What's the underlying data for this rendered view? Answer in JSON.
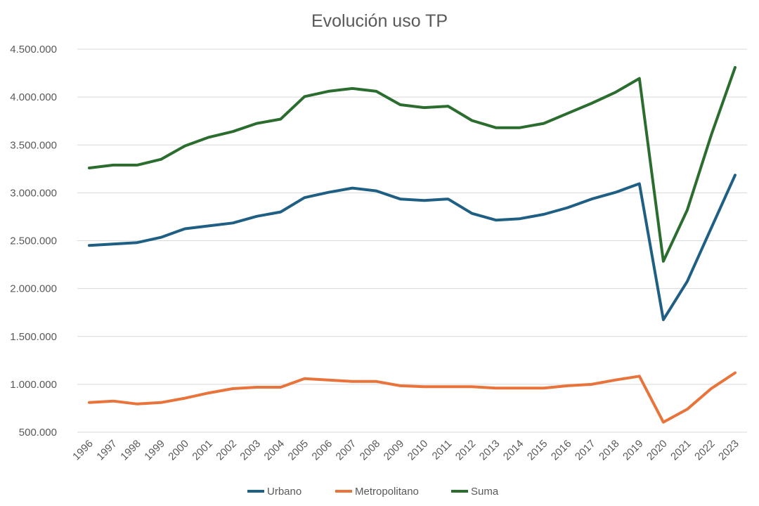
{
  "chart_data": {
    "type": "line",
    "title": "Evolución uso TP",
    "xlabel": "",
    "ylabel": "",
    "categories": [
      "1996",
      "1997",
      "1998",
      "1999",
      "2000",
      "2001",
      "2002",
      "2003",
      "2004",
      "2005",
      "2006",
      "2007",
      "2008",
      "2009",
      "2010",
      "2011",
      "2012",
      "2013",
      "2014",
      "2015",
      "2016",
      "2017",
      "2018",
      "2019",
      "2020",
      "2021",
      "2022",
      "2023"
    ],
    "ylim": [
      500000,
      4500000
    ],
    "yticks": [
      500000,
      1000000,
      1500000,
      2000000,
      2500000,
      3000000,
      3500000,
      4000000,
      4500000
    ],
    "ytick_labels": [
      "500.000",
      "1.000.000",
      "1.500.000",
      "2.000.000",
      "2.500.000",
      "3.000.000",
      "3.500.000",
      "4.000.000",
      "4.500.000"
    ],
    "grid": true,
    "legend_position": "bottom",
    "series": [
      {
        "name": "Urbano",
        "color": "#1f5f83",
        "values": [
          2450000,
          2465000,
          2480000,
          2535000,
          2625000,
          2655000,
          2685000,
          2755000,
          2800000,
          2950000,
          3005000,
          3050000,
          3020000,
          2935000,
          2920000,
          2935000,
          2785000,
          2715000,
          2730000,
          2775000,
          2845000,
          2935000,
          3005000,
          3095000,
          1675000,
          2075000,
          2630000,
          3185000
        ]
      },
      {
        "name": "Metropolitano",
        "color": "#e8743b",
        "values": [
          810000,
          825000,
          795000,
          810000,
          855000,
          910000,
          955000,
          970000,
          970000,
          1060000,
          1045000,
          1030000,
          1030000,
          985000,
          975000,
          975000,
          975000,
          960000,
          960000,
          960000,
          985000,
          1000000,
          1045000,
          1085000,
          605000,
          740000,
          955000,
          1120000
        ]
      },
      {
        "name": "Suma",
        "color": "#2a6d2e",
        "values": [
          3260000,
          3290000,
          3290000,
          3350000,
          3490000,
          3580000,
          3640000,
          3725000,
          3770000,
          4005000,
          4060000,
          4090000,
          4060000,
          3920000,
          3890000,
          3905000,
          3755000,
          3680000,
          3680000,
          3725000,
          3830000,
          3935000,
          4050000,
          4195000,
          2285000,
          2820000,
          3600000,
          4310000
        ]
      }
    ]
  }
}
